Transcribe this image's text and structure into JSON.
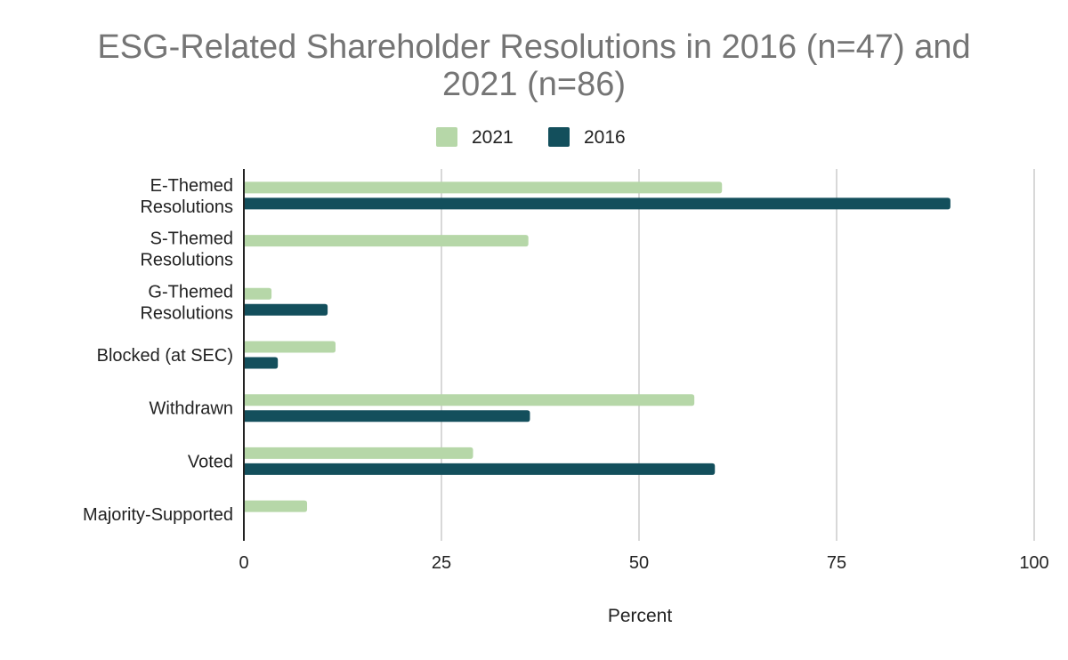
{
  "chart_data": {
    "type": "bar",
    "orientation": "horizontal",
    "title_lines": [
      "ESG-Related Shareholder Resolutions in 2016 (n=47) and",
      "2021 (n=86)"
    ],
    "categories": [
      [
        "E-Themed",
        "Resolutions"
      ],
      [
        "S-Themed",
        "Resolutions"
      ],
      [
        "G-Themed",
        "Resolutions"
      ],
      [
        "Blocked (at SEC)"
      ],
      [
        "Withdrawn"
      ],
      [
        "Voted"
      ],
      [
        "Majority-Supported"
      ]
    ],
    "series": [
      {
        "name": "2021",
        "color": "#b6d7a8",
        "values": [
          60.5,
          36,
          3.5,
          11.6,
          57,
          29,
          8
        ]
      },
      {
        "name": "2016",
        "color": "#134f5c",
        "values": [
          89.4,
          0,
          10.6,
          4.3,
          36.2,
          59.6,
          0
        ]
      }
    ],
    "xlabel": "Percent",
    "xlim": [
      0,
      100
    ],
    "xticks": [
      "0",
      "25",
      "50",
      "75",
      "100"
    ],
    "grid": true,
    "legend_position": "top"
  }
}
